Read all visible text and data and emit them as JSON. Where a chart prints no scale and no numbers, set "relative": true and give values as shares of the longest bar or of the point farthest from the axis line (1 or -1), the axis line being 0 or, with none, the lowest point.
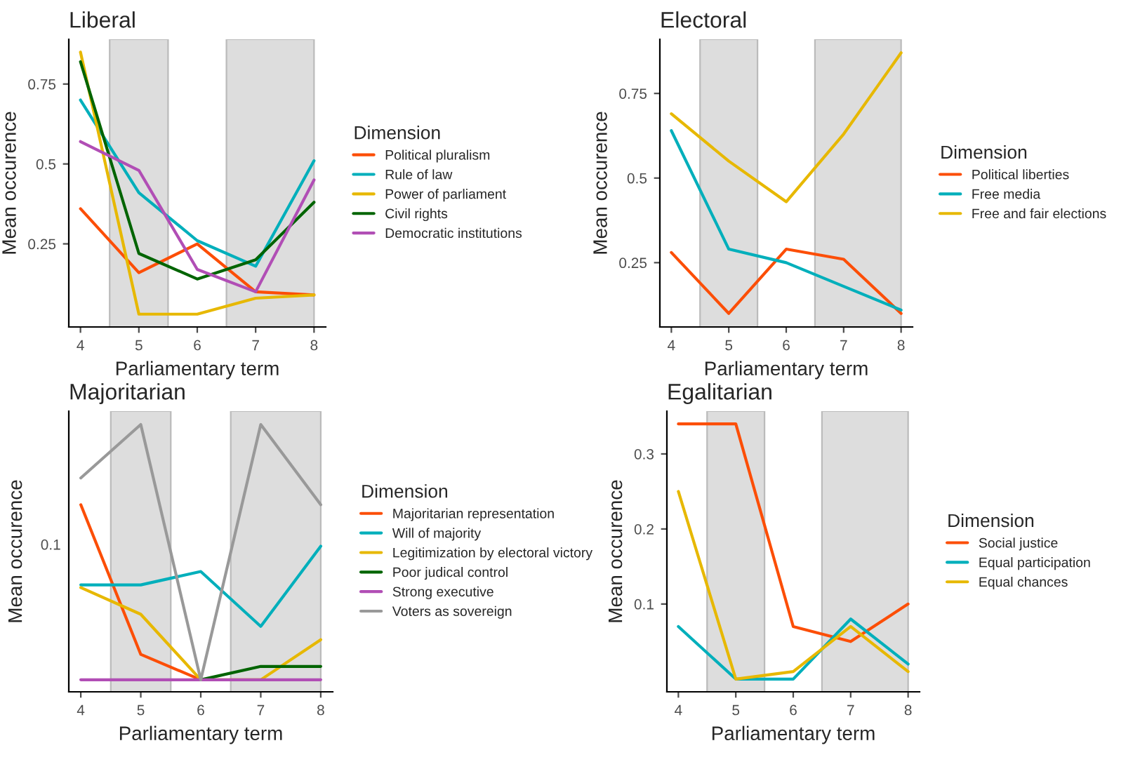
{
  "chart_data": [
    {
      "type": "line",
      "title": "Liberal",
      "xlabel": "Parliamentary term",
      "ylabel": "Mean occurence",
      "legend_title": "Dimension",
      "legend": "right",
      "grid": false,
      "x": [
        4,
        5,
        6,
        7,
        8
      ],
      "xlim": [
        3.8,
        8.2
      ],
      "xticks": [
        4,
        5,
        6,
        7,
        8
      ],
      "ylim": [
        -0.01,
        0.89
      ],
      "yticks": [
        0.25,
        0.5,
        0.75
      ],
      "bands": [
        {
          "axis": "x",
          "from": 4.5,
          "to": 5.5,
          "color": "#dddddd"
        },
        {
          "axis": "x",
          "from": 6.5,
          "to": 8,
          "color": "#dddddd"
        }
      ],
      "series": [
        {
          "name": "Political pluralism",
          "color": "#fc4e07",
          "values": [
            0.36,
            0.16,
            0.25,
            0.1,
            0.09
          ]
        },
        {
          "name": "Rule of law",
          "color": "#00afbb",
          "values": [
            0.7,
            0.41,
            0.26,
            0.18,
            0.51
          ]
        },
        {
          "name": "Power of parliament",
          "color": "#e7b800",
          "values": [
            0.85,
            0.03,
            0.03,
            0.08,
            0.09
          ]
        },
        {
          "name": "Civil rights",
          "color": "#006400",
          "values": [
            0.82,
            0.22,
            0.14,
            0.2,
            0.38
          ]
        },
        {
          "name": "Democratic institutions",
          "color": "#b14eb5",
          "values": [
            0.57,
            0.48,
            0.17,
            0.1,
            0.45
          ]
        }
      ]
    },
    {
      "type": "line",
      "title": "Electoral",
      "xlabel": "Parliamentary term",
      "ylabel": "Mean occurence",
      "legend_title": "Dimension",
      "legend": "right",
      "grid": false,
      "x": [
        4,
        5,
        6,
        7,
        8
      ],
      "xlim": [
        3.8,
        8.2
      ],
      "xticks": [
        4,
        5,
        6,
        7,
        8
      ],
      "ylim": [
        0.06,
        0.91
      ],
      "yticks": [
        0.25,
        0.5,
        0.75
      ],
      "bands": [
        {
          "axis": "x",
          "from": 4.5,
          "to": 5.5,
          "color": "#dddddd"
        },
        {
          "axis": "x",
          "from": 6.5,
          "to": 8,
          "color": "#dddddd"
        }
      ],
      "series": [
        {
          "name": "Political liberties",
          "color": "#fc4e07",
          "values": [
            0.28,
            0.1,
            0.29,
            0.26,
            0.1
          ]
        },
        {
          "name": "Free media",
          "color": "#00afbb",
          "values": [
            0.64,
            0.29,
            0.25,
            0.18,
            0.11
          ]
        },
        {
          "name": "Free and fair elections",
          "color": "#e7b800",
          "values": [
            0.69,
            0.55,
            0.43,
            0.63,
            0.87
          ]
        }
      ]
    },
    {
      "type": "line",
      "title": "Majoritarian",
      "xlabel": "Parliamentary term",
      "ylabel": "Mean occurence",
      "legend_title": "Dimension",
      "legend": "right",
      "grid": false,
      "relative": true,
      "annotations": [
        "0.1"
      ],
      "x": [
        4,
        5,
        6,
        7,
        8
      ],
      "xlim": [
        3.8,
        8.2
      ],
      "xticks": [
        4,
        5,
        6,
        7,
        8
      ],
      "bands": [
        {
          "axis": "x",
          "from": 4.5,
          "to": 5.5,
          "color": "#dddddd"
        },
        {
          "axis": "x",
          "from": 6.5,
          "to": 8,
          "color": "#dddddd"
        }
      ],
      "series": [
        {
          "name": "Majoritarian representation",
          "color": "#fc4e07",
          "values": [
            0.7,
            0.14,
            0.045,
            null,
            null
          ]
        },
        {
          "name": "Will of majority",
          "color": "#00afbb",
          "values": [
            0.4,
            0.4,
            0.45,
            0.245,
            0.545
          ]
        },
        {
          "name": "Legitimization by electoral victory",
          "color": "#e7b800",
          "values": [
            0.39,
            0.29,
            0.045,
            0.045,
            0.195
          ]
        },
        {
          "name": "Poor judical control",
          "color": "#006400",
          "values": [
            null,
            null,
            0.045,
            0.095,
            0.095
          ]
        },
        {
          "name": "Strong executive",
          "color": "#b14eb5",
          "values": [
            0.045,
            0.045,
            0.045,
            0.045,
            0.045
          ]
        },
        {
          "name": "Voters as sovereign",
          "color": "#999999",
          "values": [
            0.8,
            1.0,
            0.045,
            1.0,
            0.7
          ]
        }
      ]
    },
    {
      "type": "line",
      "title": "Egalitarian",
      "xlabel": "Parliamentary term",
      "ylabel": "Mean occurence",
      "legend_title": "Dimension",
      "legend": "right",
      "grid": false,
      "x": [
        4,
        5,
        6,
        7,
        8
      ],
      "xlim": [
        3.8,
        8.2
      ],
      "xticks": [
        4,
        5,
        6,
        7,
        8
      ],
      "ylim": [
        -0.017,
        0.357
      ],
      "yticks": [
        0.1,
        0.2,
        0.3
      ],
      "bands": [
        {
          "axis": "x",
          "from": 4.5,
          "to": 5.5,
          "color": "#dddddd"
        },
        {
          "axis": "x",
          "from": 6.5,
          "to": 8,
          "color": "#dddddd"
        }
      ],
      "series": [
        {
          "name": "Social justice",
          "color": "#fc4e07",
          "values": [
            0.34,
            0.34,
            0.07,
            0.05,
            0.1
          ]
        },
        {
          "name": "Equal participation",
          "color": "#00afbb",
          "values": [
            0.07,
            0.0,
            0.0,
            0.08,
            0.02
          ]
        },
        {
          "name": "Equal chances",
          "color": "#e7b800",
          "values": [
            0.25,
            0.0,
            0.01,
            0.07,
            0.01
          ]
        }
      ]
    }
  ]
}
